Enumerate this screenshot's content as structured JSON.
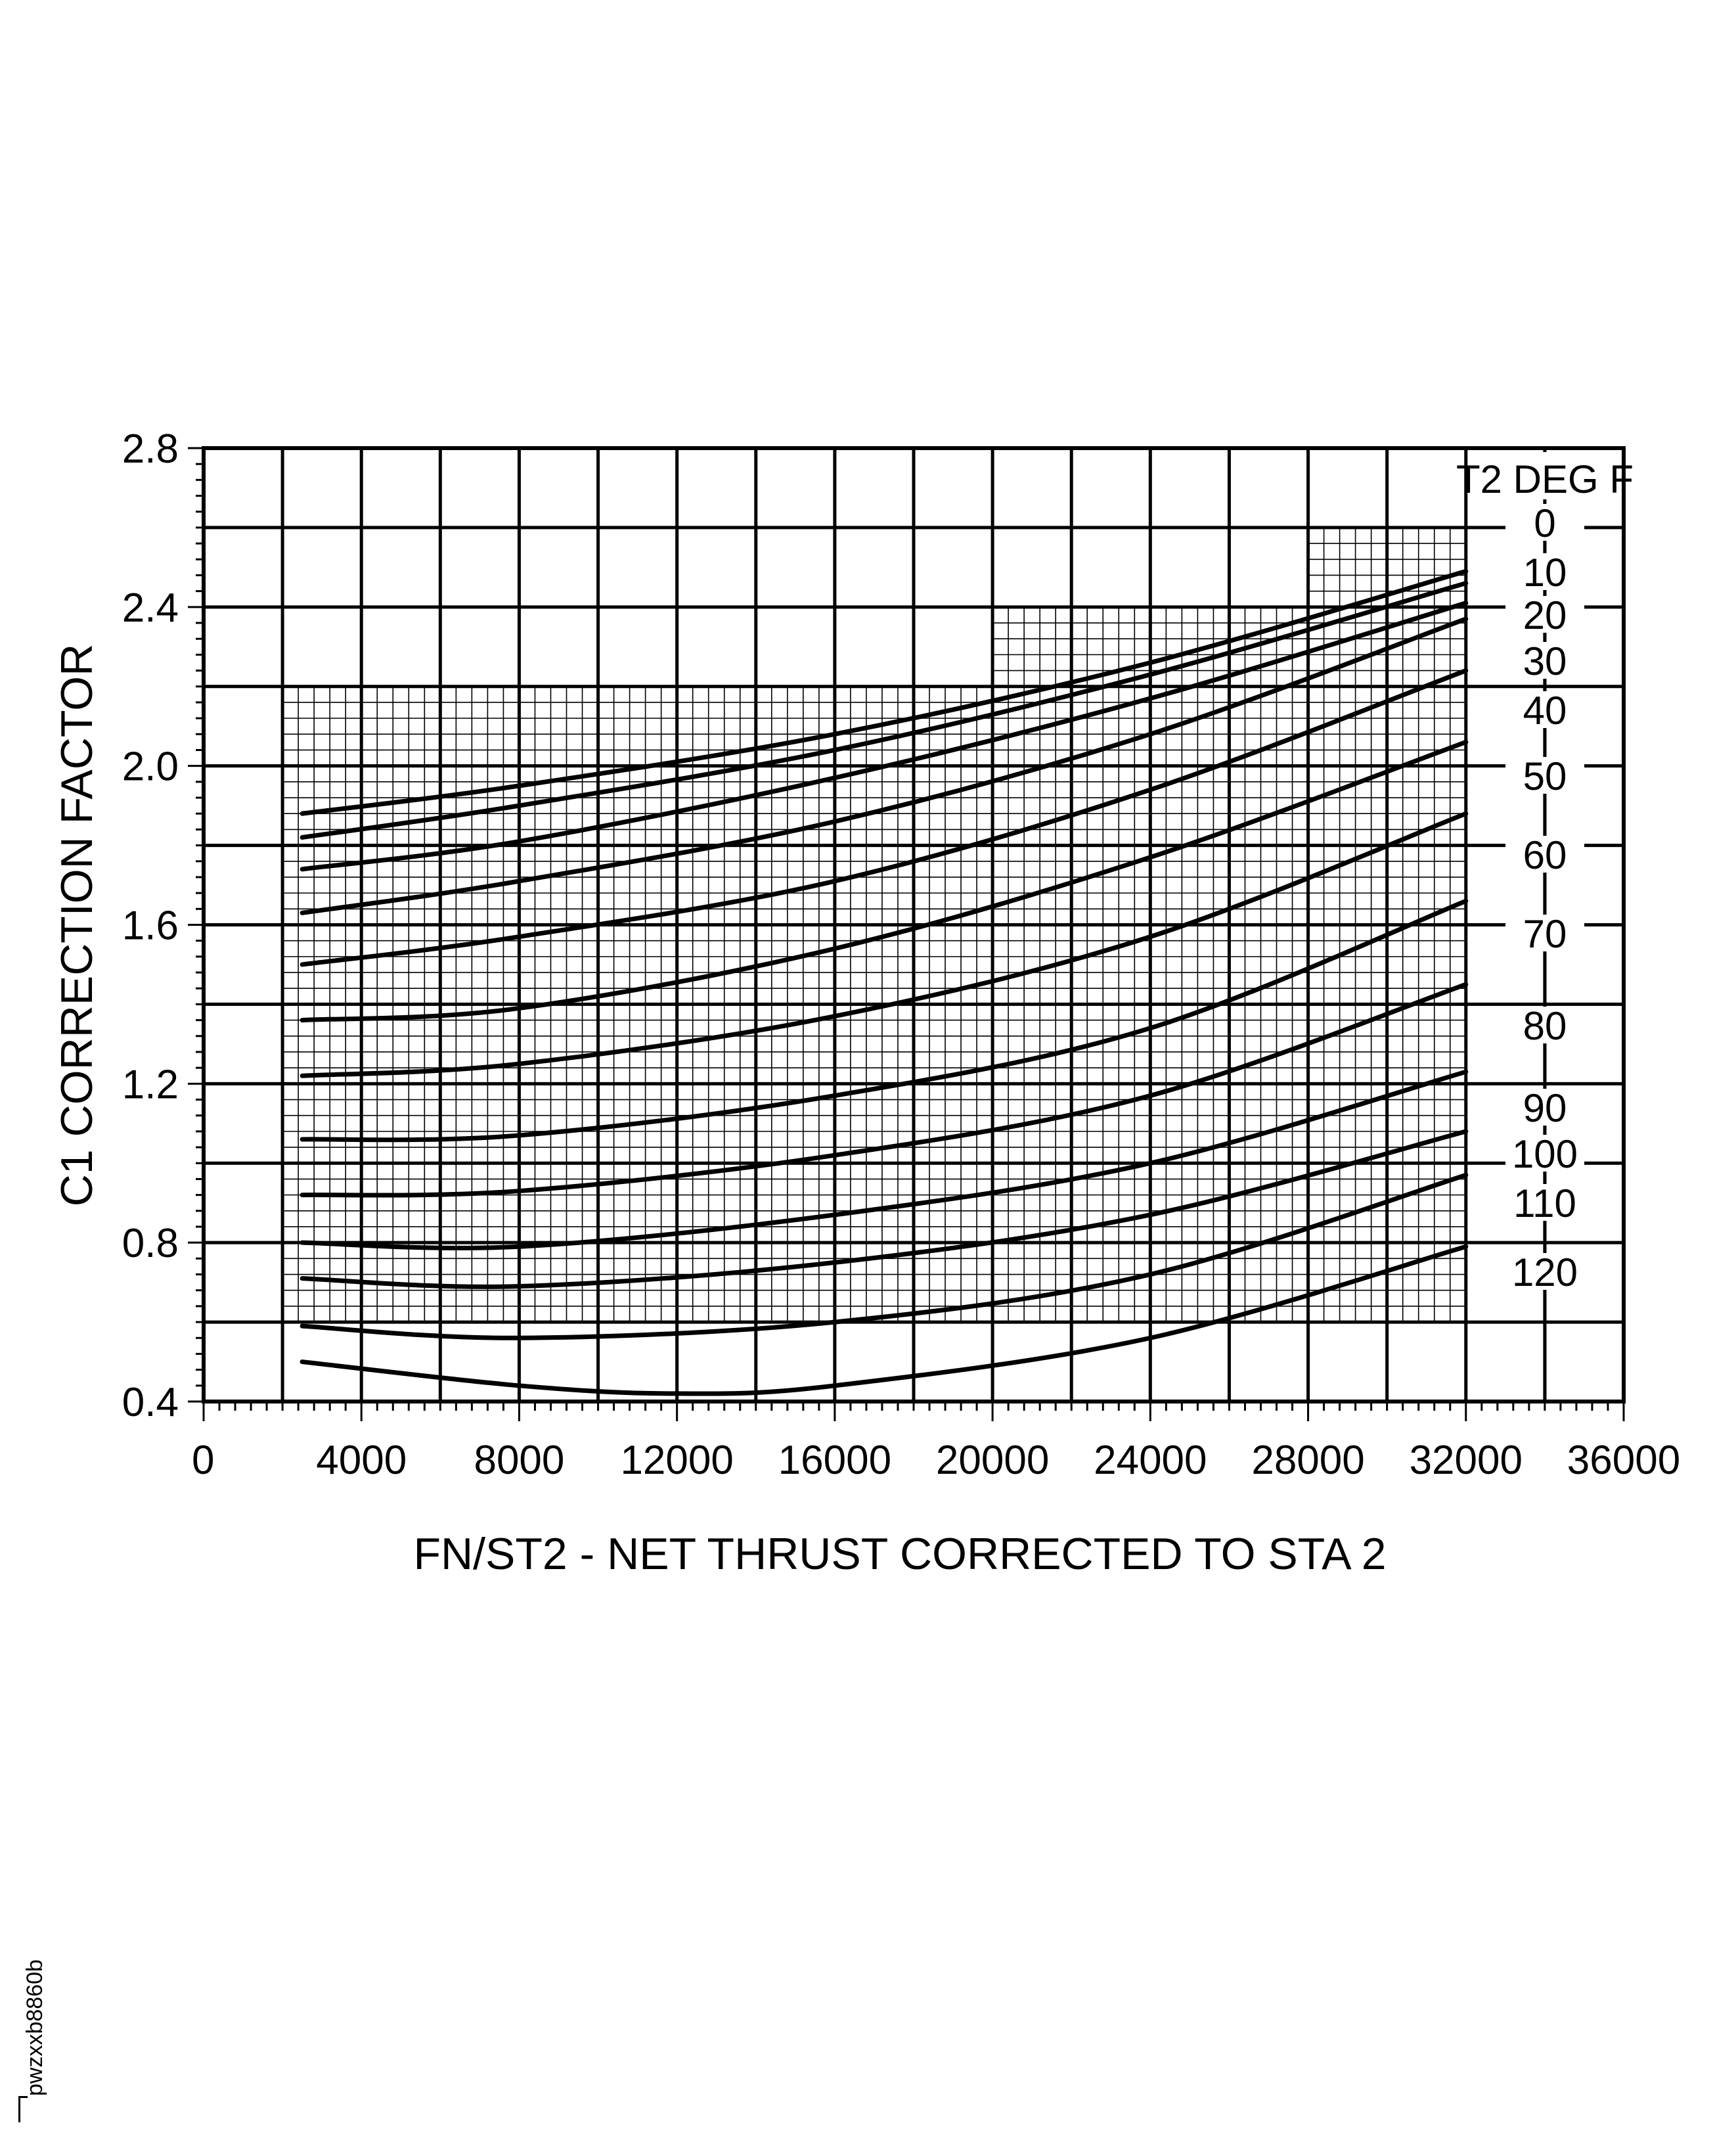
{
  "chart_data": {
    "type": "line",
    "title": "",
    "xlabel": "FN/ST2 - NET THRUST CORRECTED TO STA 2",
    "ylabel": "C1 CORRECTION FACTOR",
    "xlim": [
      0,
      36000
    ],
    "ylim": [
      0.4,
      2.8
    ],
    "x_ticks": [
      "0",
      "4000",
      "8000",
      "12000",
      "16000",
      "20000",
      "24000",
      "28000",
      "32000",
      "36000"
    ],
    "y_ticks": [
      "0.4",
      "0.8",
      "1.2",
      "1.6",
      "2.0",
      "2.4",
      "2.8"
    ],
    "grid": "major grid every 2000 x 0.2; fine grid inside the plotted region",
    "legend_title": "T2 DEG F",
    "series": [
      {
        "name": "0",
        "x": [
          2500,
          8000,
          16000,
          24000,
          32000
        ],
        "y": [
          1.88,
          1.95,
          2.08,
          2.26,
          2.49
        ]
      },
      {
        "name": "10",
        "x": [
          2500,
          8000,
          16000,
          24000,
          32000
        ],
        "y": [
          1.82,
          1.9,
          2.04,
          2.23,
          2.46
        ]
      },
      {
        "name": "20",
        "x": [
          2500,
          8000,
          16000,
          24000,
          32000
        ],
        "y": [
          1.74,
          1.81,
          1.97,
          2.17,
          2.41
        ]
      },
      {
        "name": "30",
        "x": [
          2500,
          8000,
          16000,
          24000,
          32000
        ],
        "y": [
          1.63,
          1.71,
          1.86,
          2.08,
          2.37
        ]
      },
      {
        "name": "40",
        "x": [
          2500,
          8000,
          16000,
          24000,
          32000
        ],
        "y": [
          1.5,
          1.57,
          1.71,
          1.94,
          2.24
        ]
      },
      {
        "name": "50",
        "x": [
          2500,
          8000,
          16000,
          24000,
          32000
        ],
        "y": [
          1.36,
          1.39,
          1.54,
          1.77,
          2.06
        ]
      },
      {
        "name": "60",
        "x": [
          2500,
          8000,
          16000,
          24000,
          32000
        ],
        "y": [
          1.22,
          1.25,
          1.37,
          1.57,
          1.88
        ]
      },
      {
        "name": "70",
        "x": [
          2500,
          8000,
          16000,
          24000,
          32000
        ],
        "y": [
          1.06,
          1.07,
          1.17,
          1.34,
          1.66
        ]
      },
      {
        "name": "80",
        "x": [
          2500,
          8000,
          16000,
          24000,
          32000
        ],
        "y": [
          0.92,
          0.93,
          1.02,
          1.17,
          1.45
        ]
      },
      {
        "name": "90",
        "x": [
          2500,
          8000,
          16000,
          24000,
          32000
        ],
        "y": [
          0.8,
          0.79,
          0.87,
          1.0,
          1.23
        ]
      },
      {
        "name": "100",
        "x": [
          2500,
          8000,
          16000,
          24000,
          32000
        ],
        "y": [
          0.71,
          0.69,
          0.75,
          0.87,
          1.08
        ]
      },
      {
        "name": "110",
        "x": [
          2500,
          8000,
          16000,
          24000,
          32000
        ],
        "y": [
          0.59,
          0.56,
          0.6,
          0.72,
          0.97
        ]
      },
      {
        "name": "120",
        "x": [
          2500,
          8000,
          12000,
          16000,
          24000,
          32000
        ],
        "y": [
          0.5,
          0.44,
          0.42,
          0.44,
          0.56,
          0.79
        ]
      }
    ]
  },
  "figure_ref": "pwzxxb8860b"
}
